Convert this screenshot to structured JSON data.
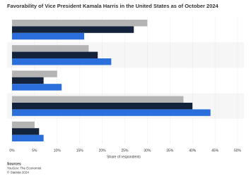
{
  "chart_data": {
    "type": "hbar",
    "title": "Favorability of Vice President Kamala Harris in the United States as of October 2024",
    "categories": [
      null,
      null,
      null,
      null,
      null
    ],
    "series": [
      {
        "color": "#b4b4b4",
        "values": [
          30,
          17,
          10,
          38,
          5
        ]
      },
      {
        "color": "#14233c",
        "values": [
          27,
          19,
          7,
          40,
          6
        ]
      },
      {
        "color": "#2a6fdb",
        "values": [
          16,
          22,
          11,
          44,
          7
        ]
      }
    ],
    "xlim": [
      0,
      50
    ],
    "xticks": [
      {
        "value": 0,
        "label": "0%"
      },
      {
        "value": 5,
        "label": "5%"
      },
      {
        "value": 10,
        "label": "10%"
      },
      {
        "value": 15,
        "label": "15%"
      },
      {
        "value": 20,
        "label": "20%"
      },
      {
        "value": 25,
        "label": "25%"
      },
      {
        "value": 30,
        "label": "30%"
      },
      {
        "value": 35,
        "label": "35%"
      },
      {
        "value": 40,
        "label": "40%"
      },
      {
        "value": 45,
        "label": "45%"
      },
      {
        "value": 50,
        "label": "50%"
      }
    ],
    "xlabel": "Share of respondents",
    "grid": true,
    "source_heading": "Sources",
    "source_lines": [
      "YouGov; The Economist",
      "© Statista 2024"
    ]
  }
}
